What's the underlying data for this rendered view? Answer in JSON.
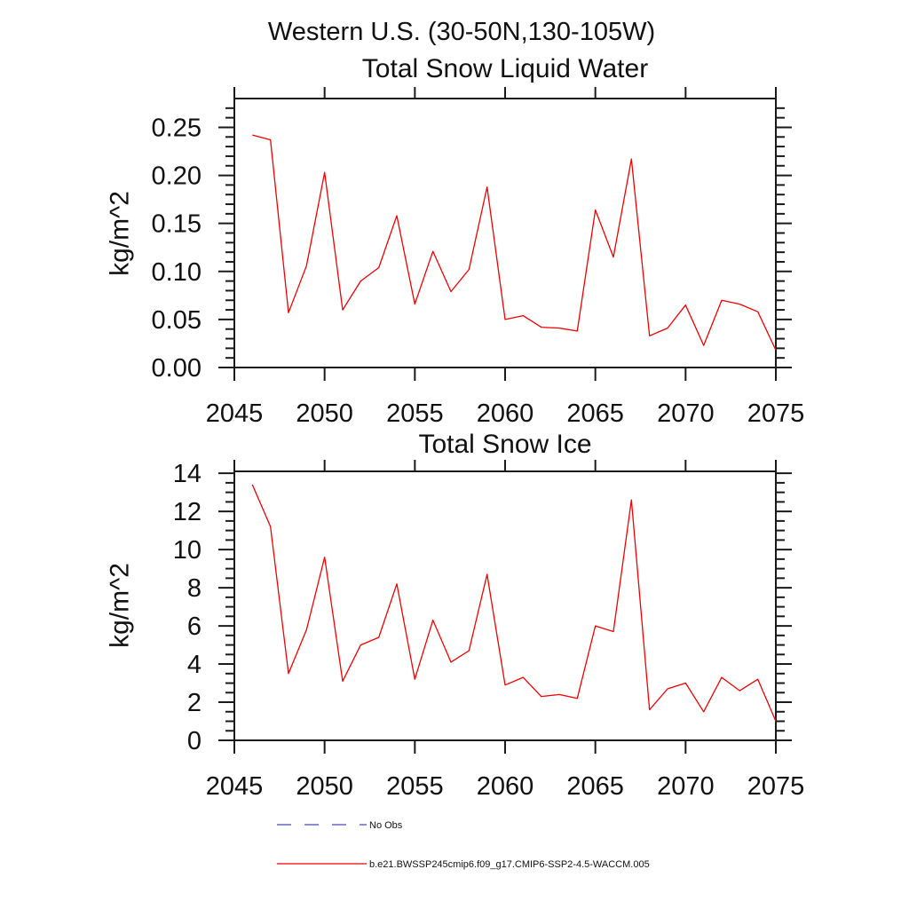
{
  "main_title": "Western U.S. (30-50N,130-105W)",
  "colors": {
    "series_red": "#f40000",
    "no_obs_blue": "#6666cc",
    "axis": "#1a1a1a"
  },
  "legend": [
    {
      "label": "No Obs",
      "color": "#6666cc",
      "style": "dashed"
    },
    {
      "label": "b.e21.BWSSP245cmip6.f09_g17.CMIP6-SSP2-4.5-WACCM.005",
      "color": "#f40000",
      "style": "solid"
    }
  ],
  "chart_data": [
    {
      "type": "line",
      "title": "Total Snow Liquid Water",
      "ylabel": "kg/m^2",
      "xlabel": "",
      "x": [
        2046,
        2047,
        2048,
        2049,
        2050,
        2051,
        2052,
        2053,
        2054,
        2055,
        2056,
        2057,
        2058,
        2059,
        2060,
        2061,
        2062,
        2063,
        2064,
        2065,
        2066,
        2067,
        2068,
        2069,
        2070,
        2071,
        2072,
        2073,
        2074,
        2075
      ],
      "series": [
        {
          "name": "b.e21.BWSSP245cmip6.f09_g17.CMIP6-SSP2-4.5-WACCM.005",
          "color": "#f40000",
          "values": [
            0.242,
            0.237,
            0.057,
            0.106,
            0.203,
            0.06,
            0.09,
            0.104,
            0.158,
            0.066,
            0.121,
            0.079,
            0.102,
            0.188,
            0.05,
            0.054,
            0.042,
            0.041,
            0.038,
            0.164,
            0.115,
            0.217,
            0.033,
            0.041,
            0.065,
            0.023,
            0.07,
            0.066,
            0.058,
            0.018
          ]
        }
      ],
      "xlim": [
        2045,
        2075
      ],
      "ylim": [
        0,
        0.28
      ],
      "xticks": [
        2045,
        2050,
        2055,
        2060,
        2065,
        2070,
        2075
      ],
      "yticks": [
        0,
        0.05,
        0.1,
        0.15,
        0.2,
        0.25
      ],
      "ytick_labels": [
        "0.00",
        "0.05",
        "0.10",
        "0.15",
        "0.20",
        "0.25"
      ],
      "yminor_step": 0.01,
      "grid": false,
      "legend_position": "below-figure"
    },
    {
      "type": "line",
      "title": "Total Snow Ice",
      "ylabel": "kg/m^2",
      "xlabel": "",
      "x": [
        2046,
        2047,
        2048,
        2049,
        2050,
        2051,
        2052,
        2053,
        2054,
        2055,
        2056,
        2057,
        2058,
        2059,
        2060,
        2061,
        2062,
        2063,
        2064,
        2065,
        2066,
        2067,
        2068,
        2069,
        2070,
        2071,
        2072,
        2073,
        2074,
        2075
      ],
      "series": [
        {
          "name": "b.e21.BWSSP245cmip6.f09_g17.CMIP6-SSP2-4.5-WACCM.005",
          "color": "#f40000",
          "values": [
            13.4,
            11.2,
            3.5,
            5.8,
            9.6,
            3.1,
            5.0,
            5.4,
            8.2,
            3.2,
            6.3,
            4.1,
            4.7,
            8.7,
            2.9,
            3.3,
            2.3,
            2.4,
            2.2,
            6.0,
            5.7,
            12.6,
            1.6,
            2.7,
            3.0,
            1.5,
            3.3,
            2.6,
            3.2,
            1.0
          ]
        }
      ],
      "xlim": [
        2045,
        2075
      ],
      "ylim": [
        0,
        14.1
      ],
      "xticks": [
        2045,
        2050,
        2055,
        2060,
        2065,
        2070,
        2075
      ],
      "yticks": [
        0,
        2,
        4,
        6,
        8,
        10,
        12,
        14
      ],
      "ytick_labels": [
        "0",
        "2",
        "4",
        "6",
        "8",
        "10",
        "12",
        "14"
      ],
      "yminor_step": 0.5,
      "grid": false,
      "legend_position": "below-figure"
    }
  ]
}
